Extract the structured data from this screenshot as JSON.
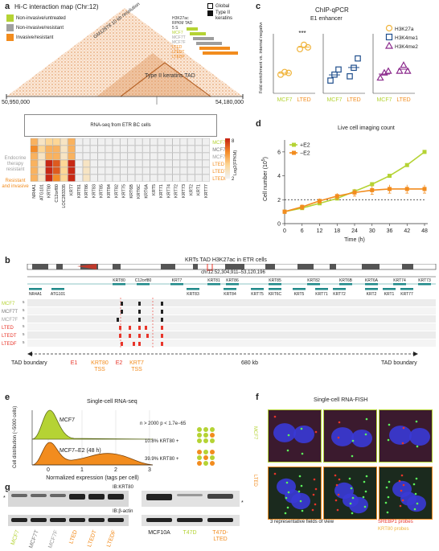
{
  "colors": {
    "mcf7": "#b5d334",
    "mcf7t": "#7a7a7a",
    "mcf7f": "#9e9e9e",
    "lted": "#f28c1e",
    "red": "#e8352a",
    "purple": "#8b2a8c",
    "navy": "#1f4e8c",
    "dark_orange": "#e65c00",
    "hic": "#d9884a"
  },
  "panels": {
    "a": {
      "letter": "a",
      "title": "Hi-C interaction map (Chr:12)",
      "legend": [
        {
          "label": "Non-invasive/untreated",
          "color": "#b5d334"
        },
        {
          "label": "Non-invasive/resistant",
          "color": "#a0a0a0"
        },
        {
          "label": "Invasive/resistant",
          "color": "#f28c1e"
        }
      ],
      "legend2": [
        {
          "label": "Global",
          "fill": "#ffffff"
        },
        {
          "label": "Type II keratins",
          "fill": "#111111"
        }
      ],
      "map_label": "GM12878 10 kb resolution",
      "tad_label": "Type II keratins TAD",
      "coord_left": "50,950,000",
      "coord_right": "54,180,000",
      "track_labels": [
        "H3K27ac",
        "RPKM TAD",
        "5 S",
        "MCF7",
        "MCF7T",
        "MCF7F",
        "LTED",
        "LTEDT",
        "LTEDF"
      ],
      "rnaseq_title": "RNA-seq from ETR BC cells",
      "genes": [
        "NR4A1",
        "ATG101",
        "KRT80",
        "C12orf80",
        "LOC283335",
        "KRT7",
        "KRT81",
        "KRT86",
        "KRT83",
        "KRT85",
        "KRT84",
        "KRT82",
        "KRT75",
        "KRT6B",
        "KRT6C",
        "KRT6A",
        "KRT5",
        "KRT71",
        "KRT74",
        "KRT72",
        "KRT73",
        "KRT2",
        "KRT1",
        "KRT77"
      ],
      "rows": [
        "MCF7",
        "MCF7T",
        "MCF7F",
        "LTED",
        "LTEDT",
        "LTEDF"
      ],
      "heat": [
        [
          5,
          3,
          4,
          4,
          3,
          5,
          2,
          2,
          2,
          2,
          2,
          2,
          2,
          2,
          2,
          2,
          2,
          2,
          2,
          2,
          2,
          2,
          2,
          2
        ],
        [
          6,
          4,
          5,
          5,
          3,
          5,
          2,
          2,
          2,
          2,
          2,
          2,
          2,
          2,
          2,
          2,
          2,
          2,
          2,
          2,
          2,
          2,
          2,
          2
        ],
        [
          5,
          3,
          5,
          5,
          3,
          5,
          2,
          2,
          2,
          2,
          2,
          2,
          2,
          2,
          2,
          2,
          2,
          2,
          2,
          2,
          2,
          2,
          2,
          2
        ],
        [
          5,
          3,
          8,
          7,
          4,
          8,
          2,
          3,
          2,
          2,
          2,
          2,
          2,
          2,
          2,
          2,
          2,
          2,
          2,
          2,
          2,
          2,
          2,
          2
        ],
        [
          5,
          3,
          8,
          7,
          4,
          8,
          2,
          3,
          2,
          2,
          2,
          2,
          2,
          2,
          2,
          2,
          2,
          2,
          2,
          2,
          2,
          2,
          2,
          2
        ],
        [
          5,
          3,
          8,
          6,
          4,
          8,
          2,
          3,
          2,
          2,
          2,
          2,
          2,
          2,
          2,
          2,
          2,
          2,
          2,
          2,
          2,
          2,
          2,
          2
        ]
      ],
      "group_labels": [
        {
          "text": "Endocrine therapy resistant",
          "color": "#9e9e9e"
        },
        {
          "text": "Resistant and invasive",
          "color": "#f28c1e"
        }
      ],
      "scale": {
        "max": "8",
        "min": "2",
        "label": "Log2(FPKM)"
      }
    },
    "b": {
      "letter": "b",
      "title": "KRTs TAD H3K27ac in ETR cells",
      "coords": "chr12:52,304,911–53,120,196",
      "gene_row1": [
        "KRT80",
        "C12orf80",
        "KRT7",
        "KRT81",
        "KRT86",
        "KRT85",
        "KRT82",
        "KRT6B",
        "KRT6A",
        "KRT74",
        "KRT73"
      ],
      "gene_row2": [
        "NR4A1",
        "ATG101",
        "KRT83",
        "KRT84",
        "KRT75",
        "KRT6C",
        "KRT5",
        "KRT71",
        "KRT72",
        "KRT2",
        "KRT1",
        "KRT77"
      ],
      "tracks": [
        "MCF7",
        "MCF7T",
        "MCF7F",
        "LTED",
        "LTEDT",
        "LTEDF"
      ],
      "scale_tick": "5",
      "tad_left": "TAD boundary",
      "tad_right": "TAD boundary",
      "span": "680 kb",
      "marks": [
        {
          "text": "E1",
          "color": "#e8352a"
        },
        {
          "text": "KRT80 TSS",
          "color": "#f28c1e"
        },
        {
          "text": "E2",
          "color": "#e8352a"
        },
        {
          "text": "KRT7 TSS",
          "color": "#f28c1e"
        }
      ]
    },
    "c": {
      "letter": "c",
      "title": "ChIP-qPCR",
      "subtitle": "E1 enhancer",
      "ylabel": "Fold enrichment vs. internal negative control",
      "significance": "***",
      "xlabels": [
        "MCF7",
        "LTED"
      ],
      "legend": [
        {
          "label": "H3K27a",
          "shape": "circle",
          "color": "#f0b43c"
        },
        {
          "label": "H3K4me1",
          "shape": "square",
          "color": "#1f4e8c"
        },
        {
          "label": "H3K4me2",
          "shape": "triangle",
          "color": "#8b2a8c"
        }
      ]
    },
    "d": {
      "letter": "d",
      "title": "Live cell imaging count",
      "xlabel": "Time (h)",
      "ylabel": "Cell number (10^5)",
      "ylabel_base": "Cell number (10",
      "ylabel_exp": "5",
      "ylabel_end": ")",
      "legend": [
        {
          "label": "+E2",
          "color": "#b5d334"
        },
        {
          "label": "−E2",
          "color": "#f28c1e"
        }
      ]
    },
    "e": {
      "letter": "e",
      "title": "Single-cell RNA-seq",
      "stat": "n > 2000 p < 1.7e−65",
      "xlabel": "Normalized expression (tags per cell)",
      "ylabel": "Cell distribution (~5000 cells)",
      "labels": [
        "MCF7",
        "MCF7–E2 (48 h)"
      ],
      "pct": [
        "10.8% KRT80 +",
        "39.9% KRT80 +"
      ],
      "xticks": [
        "0",
        "1",
        "2",
        "3"
      ]
    },
    "f": {
      "letter": "f",
      "title": "Single-cell RNA-FISH",
      "row_labels": [
        "MCF7",
        "LTED"
      ],
      "caption": "3 representative fields of view",
      "probe1": "SREBP1 probes",
      "probe2": "KRT80 probes"
    },
    "g": {
      "letter": "g",
      "ib1": "IB:KRT80",
      "ib2": "IB:β-actin",
      "lanes_left": [
        {
          "text": "MCF7",
          "color": "#b5d334"
        },
        {
          "text": "MCF7T",
          "color": "#7a7a7a"
        },
        {
          "text": "MCF7F",
          "color": "#9e9e9e"
        },
        {
          "text": "LTED",
          "color": "#f28c1e"
        },
        {
          "text": "LTEDT",
          "color": "#f28c1e"
        },
        {
          "text": "LTEDF",
          "color": "#f28c1e"
        }
      ],
      "lanes_right": [
        {
          "text": "MCF10A",
          "color": "#222222"
        },
        {
          "text": "T47D",
          "color": "#b5d334"
        },
        {
          "text": "T47D-LTED",
          "color": "#f28c1e"
        }
      ],
      "star": "*"
    }
  },
  "chart_data": [
    {
      "type": "scatter",
      "title": "ChIP-qPCR E1 enhancer",
      "ylabel": "Fold enrichment vs. internal negative control",
      "categories": [
        "MCF7",
        "LTED"
      ],
      "series": [
        {
          "name": "H3K27a",
          "points": [
            [
              2.2,
              2.5,
              2.4
            ],
            [
              5.2,
              5.7,
              5.4
            ]
          ]
        },
        {
          "name": "H3K4me1",
          "points": [
            [
              1.5,
              2.2,
              2.8
            ],
            [
              2.0,
              3.0,
              4.1
            ]
          ]
        },
        {
          "name": "H3K4me2",
          "points": [
            [
              1.8,
              2.4,
              2.6
            ],
            [
              2.6,
              3.3,
              2.6
            ]
          ]
        }
      ],
      "ylim": [
        0,
        7
      ]
    },
    {
      "type": "line",
      "title": "Live cell imaging count",
      "xlabel": "Time (h)",
      "ylabel": "Cell number (10^5)",
      "x": [
        0,
        6,
        12,
        18,
        24,
        30,
        36,
        42,
        48
      ],
      "series": [
        {
          "name": "+E2",
          "values": [
            1.0,
            1.3,
            1.7,
            2.1,
            2.7,
            3.3,
            4.0,
            4.9,
            6.0
          ]
        },
        {
          "name": "−E2",
          "values": [
            1.0,
            1.4,
            1.9,
            2.3,
            2.6,
            2.8,
            2.9,
            2.9,
            2.9
          ]
        }
      ],
      "error": [
        0.15,
        0.2,
        0.2,
        0.25,
        0.3,
        0.35,
        0.35,
        0.35,
        0.35
      ],
      "ylim": [
        0,
        7
      ],
      "yticks": [
        0,
        2,
        4,
        6
      ],
      "reference_line": 2
    }
  ]
}
